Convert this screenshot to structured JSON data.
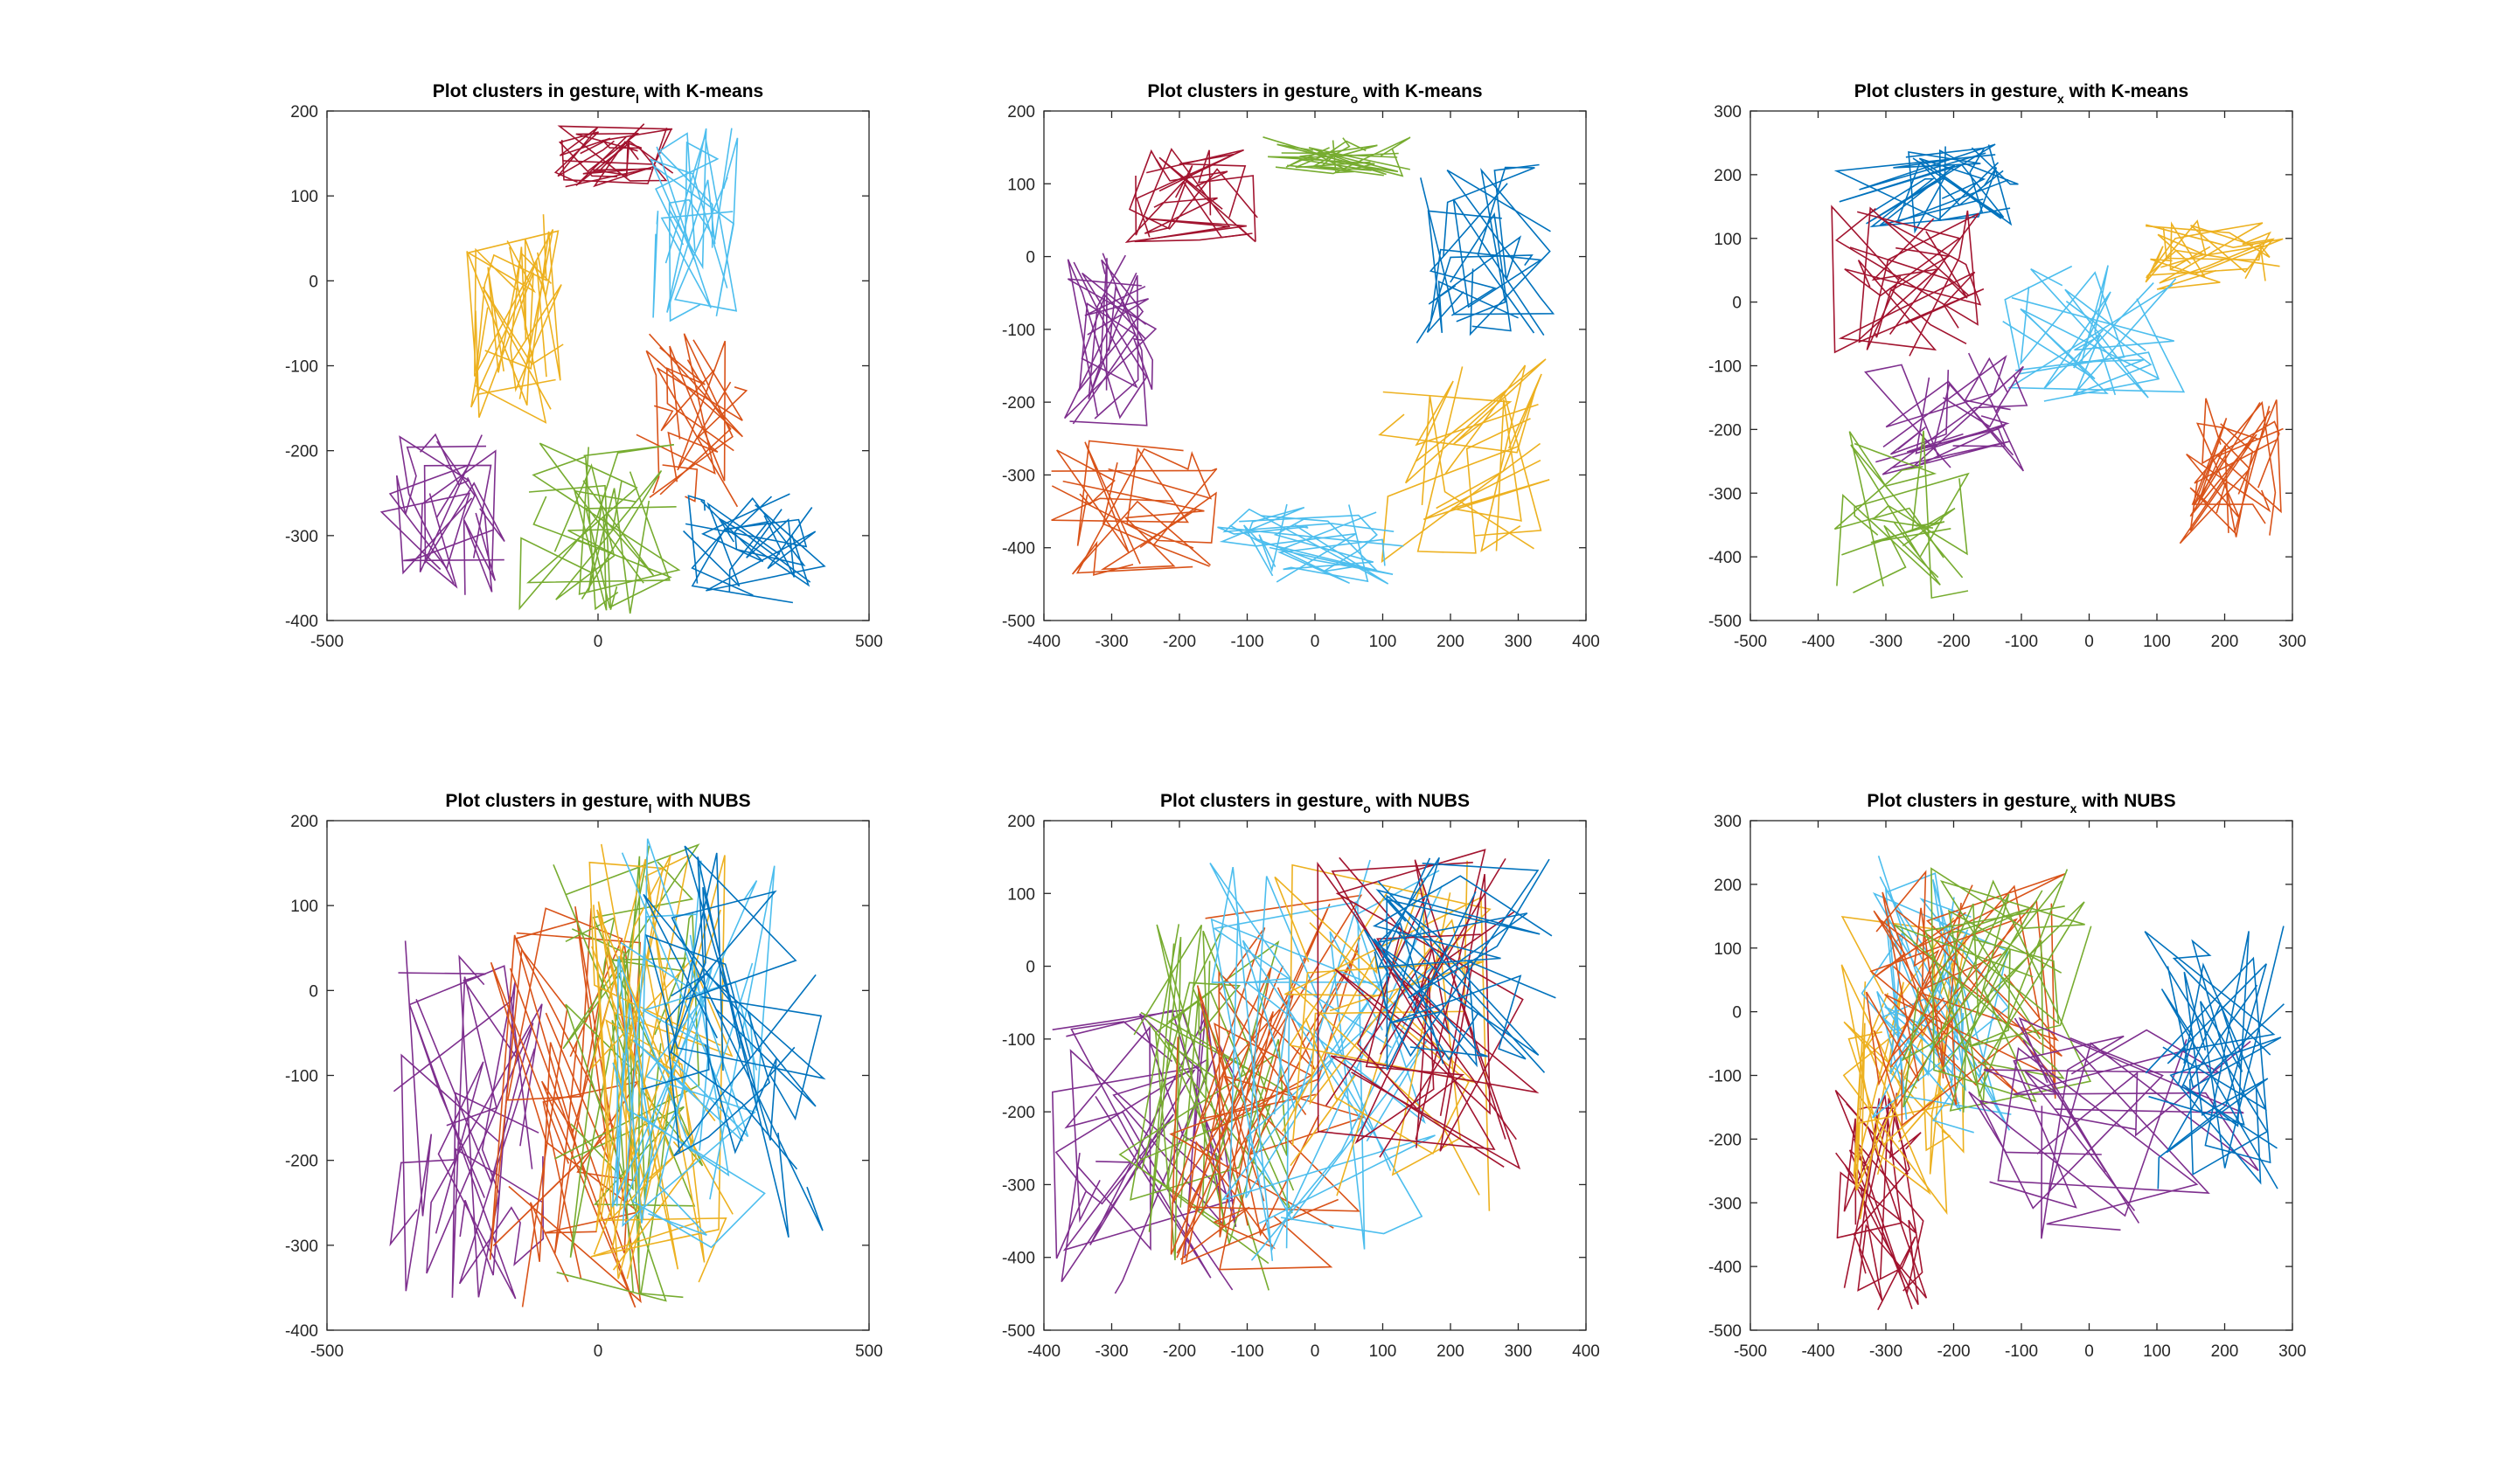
{
  "figure": {
    "background": "#ffffff",
    "axis_color": "#262626"
  },
  "colors": {
    "blue": "#0072BD",
    "orange": "#D95319",
    "yellow": "#EDB120",
    "purple": "#7E2F8E",
    "green": "#77AC30",
    "cyan": "#4DBEEE",
    "maroon": "#A2142F"
  },
  "chart_data": [
    {
      "type": "line",
      "title": {
        "prefix": "Plot clusters in gesture",
        "sub": "l",
        "suffix": " with K-means"
      },
      "xlim": [
        -500,
        500
      ],
      "ylim": [
        -400,
        200
      ],
      "xticks": [
        -500,
        0,
        500
      ],
      "yticks": [
        -400,
        -300,
        -200,
        -100,
        0,
        100,
        200
      ],
      "grid": false,
      "legend": "none",
      "clusters": [
        {
          "color": "maroon",
          "x": [
            -80,
            140
          ],
          "y": [
            110,
            185
          ]
        },
        {
          "color": "cyan",
          "x": [
            90,
            260
          ],
          "y": [
            -50,
            180
          ]
        },
        {
          "color": "yellow",
          "x": [
            -250,
            -60
          ],
          "y": [
            -170,
            80
          ]
        },
        {
          "color": "orange",
          "x": [
            70,
            280
          ],
          "y": [
            -270,
            -40
          ]
        },
        {
          "color": "purple",
          "x": [
            -400,
            -170
          ],
          "y": [
            -370,
            -180
          ]
        },
        {
          "color": "green",
          "x": [
            -150,
            150
          ],
          "y": [
            -400,
            -180
          ]
        },
        {
          "color": "blue",
          "x": [
            150,
            420
          ],
          "y": [
            -380,
            -250
          ]
        }
      ]
    },
    {
      "type": "line",
      "title": {
        "prefix": "Plot clusters in gesture",
        "sub": "o",
        "suffix": " with K-means"
      },
      "xlim": [
        -400,
        400
      ],
      "ylim": [
        -500,
        200
      ],
      "xticks": [
        -400,
        -300,
        -200,
        -100,
        0,
        100,
        200,
        300,
        400
      ],
      "yticks": [
        -500,
        -400,
        -300,
        -200,
        -100,
        0,
        100,
        200
      ],
      "grid": false,
      "legend": "none",
      "clusters": [
        {
          "color": "maroon",
          "x": [
            -280,
            -80
          ],
          "y": [
            20,
            150
          ]
        },
        {
          "color": "green",
          "x": [
            -80,
            150
          ],
          "y": [
            110,
            165
          ]
        },
        {
          "color": "blue",
          "x": [
            130,
            360
          ],
          "y": [
            -120,
            130
          ]
        },
        {
          "color": "purple",
          "x": [
            -370,
            -230
          ],
          "y": [
            -240,
            10
          ]
        },
        {
          "color": "yellow",
          "x": [
            90,
            350
          ],
          "y": [
            -420,
            -140
          ]
        },
        {
          "color": "orange",
          "x": [
            -390,
            -140
          ],
          "y": [
            -440,
            -250
          ]
        },
        {
          "color": "cyan",
          "x": [
            -150,
            140
          ],
          "y": [
            -450,
            -340
          ]
        }
      ]
    },
    {
      "type": "line",
      "title": {
        "prefix": "Plot clusters in gesture",
        "sub": "x",
        "suffix": " with K-means"
      },
      "xlim": [
        -500,
        300
      ],
      "ylim": [
        -500,
        300
      ],
      "xticks": [
        -500,
        -400,
        -300,
        -200,
        -100,
        0,
        100,
        200,
        300
      ],
      "yticks": [
        -500,
        -400,
        -300,
        -200,
        -100,
        0,
        100,
        200,
        300
      ],
      "grid": false,
      "legend": "none",
      "clusters": [
        {
          "color": "blue",
          "x": [
            -380,
            -100
          ],
          "y": [
            110,
            250
          ]
        },
        {
          "color": "maroon",
          "x": [
            -380,
            -150
          ],
          "y": [
            -90,
            160
          ]
        },
        {
          "color": "yellow",
          "x": [
            80,
            290
          ],
          "y": [
            20,
            135
          ]
        },
        {
          "color": "cyan",
          "x": [
            -130,
            140
          ],
          "y": [
            -160,
            70
          ]
        },
        {
          "color": "purple",
          "x": [
            -340,
            -90
          ],
          "y": [
            -280,
            -80
          ]
        },
        {
          "color": "green",
          "x": [
            -380,
            -170
          ],
          "y": [
            -470,
            -200
          ]
        },
        {
          "color": "orange",
          "x": [
            130,
            290
          ],
          "y": [
            -380,
            -150
          ]
        }
      ]
    },
    {
      "type": "line",
      "title": {
        "prefix": "Plot clusters in gesture",
        "sub": "l",
        "suffix": " with NUBS"
      },
      "xlim": [
        -500,
        500
      ],
      "ylim": [
        -400,
        200
      ],
      "xticks": [
        -500,
        0,
        500
      ],
      "yticks": [
        -400,
        -300,
        -200,
        -100,
        0,
        100,
        200
      ],
      "grid": false,
      "legend": "none",
      "clusters": [
        {
          "color": "purple",
          "x": [
            -400,
            -100
          ],
          "y": [
            -370,
            60
          ]
        },
        {
          "color": "orange",
          "x": [
            -200,
            80
          ],
          "y": [
            -380,
            100
          ]
        },
        {
          "color": "green",
          "x": [
            -100,
            200
          ],
          "y": [
            -380,
            175
          ]
        },
        {
          "color": "yellow",
          "x": [
            -20,
            260
          ],
          "y": [
            -350,
            180
          ]
        },
        {
          "color": "cyan",
          "x": [
            20,
            330
          ],
          "y": [
            -320,
            180
          ]
        },
        {
          "color": "blue",
          "x": [
            80,
            420
          ],
          "y": [
            -300,
            180
          ]
        }
      ]
    },
    {
      "type": "line",
      "title": {
        "prefix": "Plot clusters in gesture",
        "sub": "o",
        "suffix": " with NUBS"
      },
      "xlim": [
        -400,
        400
      ],
      "ylim": [
        -500,
        200
      ],
      "xticks": [
        -400,
        -300,
        -200,
        -100,
        0,
        100,
        200,
        300,
        400
      ],
      "yticks": [
        -500,
        -400,
        -300,
        -200,
        -100,
        0,
        100,
        200
      ],
      "grid": false,
      "legend": "none",
      "clusters": [
        {
          "color": "purple",
          "x": [
            -390,
            -110
          ],
          "y": [
            -450,
            -50
          ]
        },
        {
          "color": "green",
          "x": [
            -290,
            -30
          ],
          "y": [
            -450,
            60
          ]
        },
        {
          "color": "orange",
          "x": [
            -230,
            80
          ],
          "y": [
            -420,
            120
          ]
        },
        {
          "color": "cyan",
          "x": [
            -160,
            200
          ],
          "y": [
            -410,
            155
          ]
        },
        {
          "color": "yellow",
          "x": [
            -60,
            260
          ],
          "y": [
            -340,
            155
          ]
        },
        {
          "color": "maroon",
          "x": [
            0,
            330
          ],
          "y": [
            -280,
            160
          ]
        },
        {
          "color": "blue",
          "x": [
            60,
            360
          ],
          "y": [
            -150,
            150
          ]
        }
      ]
    },
    {
      "type": "line",
      "title": {
        "prefix": "Plot clusters in gesture",
        "sub": "x",
        "suffix": " with NUBS"
      },
      "xlim": [
        -500,
        300
      ],
      "ylim": [
        -500,
        300
      ],
      "xticks": [
        -500,
        -400,
        -300,
        -200,
        -100,
        0,
        100,
        200,
        300
      ],
      "yticks": [
        -500,
        -400,
        -300,
        -200,
        -100,
        0,
        100,
        200,
        300
      ],
      "grid": false,
      "legend": "none",
      "clusters": [
        {
          "color": "maroon",
          "x": [
            -380,
            -240
          ],
          "y": [
            -470,
            -120
          ]
        },
        {
          "color": "yellow",
          "x": [
            -370,
            -180
          ],
          "y": [
            -330,
            150
          ]
        },
        {
          "color": "cyan",
          "x": [
            -340,
            -110
          ],
          "y": [
            -240,
            250
          ]
        },
        {
          "color": "orange",
          "x": [
            -330,
            -30
          ],
          "y": [
            -180,
            250
          ]
        },
        {
          "color": "green",
          "x": [
            -290,
            20
          ],
          "y": [
            -160,
            240
          ]
        },
        {
          "color": "purple",
          "x": [
            -180,
            250
          ],
          "y": [
            -380,
            -10
          ]
        },
        {
          "color": "blue",
          "x": [
            80,
            290
          ],
          "y": [
            -290,
            135
          ]
        }
      ]
    }
  ]
}
